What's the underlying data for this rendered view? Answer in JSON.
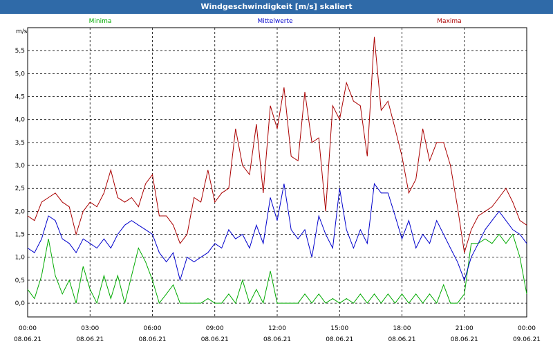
{
  "window": {
    "title": "Windgeschwindigkeit [m/s] skaliert"
  },
  "chart_data": {
    "type": "line",
    "title": "Windgeschwindigkeit [m/s] skaliert",
    "ylabel": "m/s",
    "ylim": [
      -0.3,
      6.0
    ],
    "yticks": [
      "0,0",
      "0,5",
      "1,0",
      "1,5",
      "2,0",
      "2,5",
      "3,0",
      "3,5",
      "4,0",
      "4,5",
      "5,0",
      "5,5"
    ],
    "ytick_values": [
      0,
      0.5,
      1.0,
      1.5,
      2.0,
      2.5,
      3.0,
      3.5,
      4.0,
      4.5,
      5.0,
      5.5
    ],
    "xlim": [
      0,
      24
    ],
    "xticks": [
      {
        "time": "00:00",
        "date": "08.06.21",
        "hour": 0
      },
      {
        "time": "03:00",
        "date": "08.06.21",
        "hour": 3
      },
      {
        "time": "06:00",
        "date": "08.06.21",
        "hour": 6
      },
      {
        "time": "09:00",
        "date": "08.06.21",
        "hour": 9
      },
      {
        "time": "12:00",
        "date": "08.06.21",
        "hour": 12
      },
      {
        "time": "15:00",
        "date": "08.06.21",
        "hour": 15
      },
      {
        "time": "18:00",
        "date": "08.06.21",
        "hour": 18
      },
      {
        "time": "21:00",
        "date": "08.06.21",
        "hour": 21
      },
      {
        "time": "00:00",
        "date": "09.06.21",
        "hour": 24
      }
    ],
    "grid": true,
    "legend_position": "top",
    "series": [
      {
        "name": "Minima",
        "color": "#00aa00",
        "hours": [
          0,
          0.33,
          0.67,
          1,
          1.33,
          1.67,
          2,
          2.33,
          2.67,
          3,
          3.33,
          3.67,
          4,
          4.33,
          4.67,
          5,
          5.33,
          5.67,
          6,
          6.33,
          6.67,
          7,
          7.33,
          7.67,
          8,
          8.33,
          8.67,
          9,
          9.33,
          9.67,
          10,
          10.33,
          10.67,
          11,
          11.33,
          11.67,
          12,
          12.33,
          12.67,
          13,
          13.33,
          13.67,
          14,
          14.33,
          14.67,
          15,
          15.33,
          15.67,
          16,
          16.33,
          16.67,
          17,
          17.33,
          17.67,
          18,
          18.33,
          18.67,
          19,
          19.33,
          19.67,
          20,
          20.33,
          20.67,
          21,
          21.33,
          21.67,
          22,
          22.33,
          22.67,
          23,
          23.33,
          23.67,
          24
        ],
        "values": [
          0.3,
          0.1,
          0.6,
          1.4,
          0.6,
          0.2,
          0.5,
          0.0,
          0.8,
          0.3,
          0.0,
          0.6,
          0.1,
          0.6,
          0.0,
          0.6,
          1.2,
          0.9,
          0.5,
          0.0,
          0.2,
          0.4,
          0.0,
          0.0,
          0.0,
          0.0,
          0.1,
          0.0,
          0.0,
          0.2,
          0.0,
          0.5,
          0.0,
          0.3,
          0.0,
          0.7,
          0.0,
          0.0,
          0.0,
          0.0,
          0.2,
          0.0,
          0.2,
          0.0,
          0.1,
          0.0,
          0.1,
          0.0,
          0.2,
          0.0,
          0.2,
          0.0,
          0.2,
          0.0,
          0.2,
          0.0,
          0.2,
          0.0,
          0.2,
          0.0,
          0.4,
          0.0,
          0.0,
          0.2,
          1.3,
          1.3,
          1.4,
          1.3,
          1.5,
          1.3,
          1.5,
          1.0,
          0.2
        ]
      },
      {
        "name": "Mittelwerte",
        "color": "#0000cc",
        "hours": [
          0,
          0.33,
          0.67,
          1,
          1.33,
          1.67,
          2,
          2.33,
          2.67,
          3,
          3.33,
          3.67,
          4,
          4.33,
          4.67,
          5,
          5.33,
          5.67,
          6,
          6.33,
          6.67,
          7,
          7.33,
          7.67,
          8,
          8.33,
          8.67,
          9,
          9.33,
          9.67,
          10,
          10.33,
          10.67,
          11,
          11.33,
          11.67,
          12,
          12.33,
          12.67,
          13,
          13.33,
          13.67,
          14,
          14.33,
          14.67,
          15,
          15.33,
          15.67,
          16,
          16.33,
          16.67,
          17,
          17.33,
          17.67,
          18,
          18.33,
          18.67,
          19,
          19.33,
          19.67,
          20,
          20.33,
          20.67,
          21,
          21.33,
          21.67,
          22,
          22.33,
          22.67,
          23,
          23.33,
          23.67,
          24
        ],
        "values": [
          1.2,
          1.1,
          1.4,
          1.9,
          1.8,
          1.4,
          1.3,
          1.1,
          1.4,
          1.3,
          1.2,
          1.4,
          1.2,
          1.5,
          1.7,
          1.8,
          1.7,
          1.6,
          1.5,
          1.1,
          0.9,
          1.1,
          0.5,
          1.0,
          0.9,
          1.0,
          1.1,
          1.3,
          1.2,
          1.6,
          1.4,
          1.5,
          1.2,
          1.7,
          1.3,
          2.3,
          1.8,
          2.6,
          1.6,
          1.4,
          1.6,
          1.0,
          1.9,
          1.5,
          1.2,
          2.5,
          1.6,
          1.2,
          1.6,
          1.3,
          2.6,
          2.4,
          2.4,
          1.9,
          1.4,
          1.8,
          1.2,
          1.5,
          1.3,
          1.8,
          1.5,
          1.2,
          0.9,
          0.5,
          1.0,
          1.3,
          1.6,
          1.8,
          2.0,
          1.8,
          1.6,
          1.5,
          1.3
        ]
      },
      {
        "name": "Maxima",
        "color": "#aa0000",
        "hours": [
          0,
          0.33,
          0.67,
          1,
          1.33,
          1.67,
          2,
          2.33,
          2.67,
          3,
          3.33,
          3.67,
          4,
          4.33,
          4.67,
          5,
          5.33,
          5.67,
          6,
          6.33,
          6.67,
          7,
          7.33,
          7.67,
          8,
          8.33,
          8.67,
          9,
          9.33,
          9.67,
          10,
          10.33,
          10.67,
          11,
          11.33,
          11.67,
          12,
          12.33,
          12.67,
          13,
          13.33,
          13.67,
          14,
          14.33,
          14.67,
          15,
          15.33,
          15.67,
          16,
          16.33,
          16.67,
          17,
          17.33,
          17.67,
          18,
          18.33,
          18.67,
          19,
          19.33,
          19.67,
          20,
          20.33,
          20.67,
          21,
          21.33,
          21.67,
          22,
          22.33,
          22.67,
          23,
          23.33,
          23.67,
          24
        ],
        "values": [
          1.9,
          1.8,
          2.2,
          2.3,
          2.4,
          2.2,
          2.1,
          1.5,
          2.0,
          2.2,
          2.1,
          2.4,
          2.9,
          2.3,
          2.2,
          2.3,
          2.1,
          2.6,
          2.8,
          1.9,
          1.9,
          1.7,
          1.3,
          1.5,
          2.3,
          2.2,
          2.9,
          2.2,
          2.4,
          2.5,
          3.8,
          3.0,
          2.8,
          3.9,
          2.4,
          4.3,
          3.8,
          4.7,
          3.2,
          3.1,
          4.6,
          3.5,
          3.6,
          2.0,
          4.3,
          4.0,
          4.8,
          4.4,
          4.3,
          3.2,
          5.8,
          4.2,
          4.4,
          3.8,
          3.2,
          2.4,
          2.7,
          3.8,
          3.1,
          3.5,
          3.5,
          3.0,
          2.1,
          1.1,
          1.6,
          1.9,
          2.0,
          2.1,
          2.3,
          2.5,
          2.2,
          1.8,
          1.7
        ]
      }
    ]
  }
}
